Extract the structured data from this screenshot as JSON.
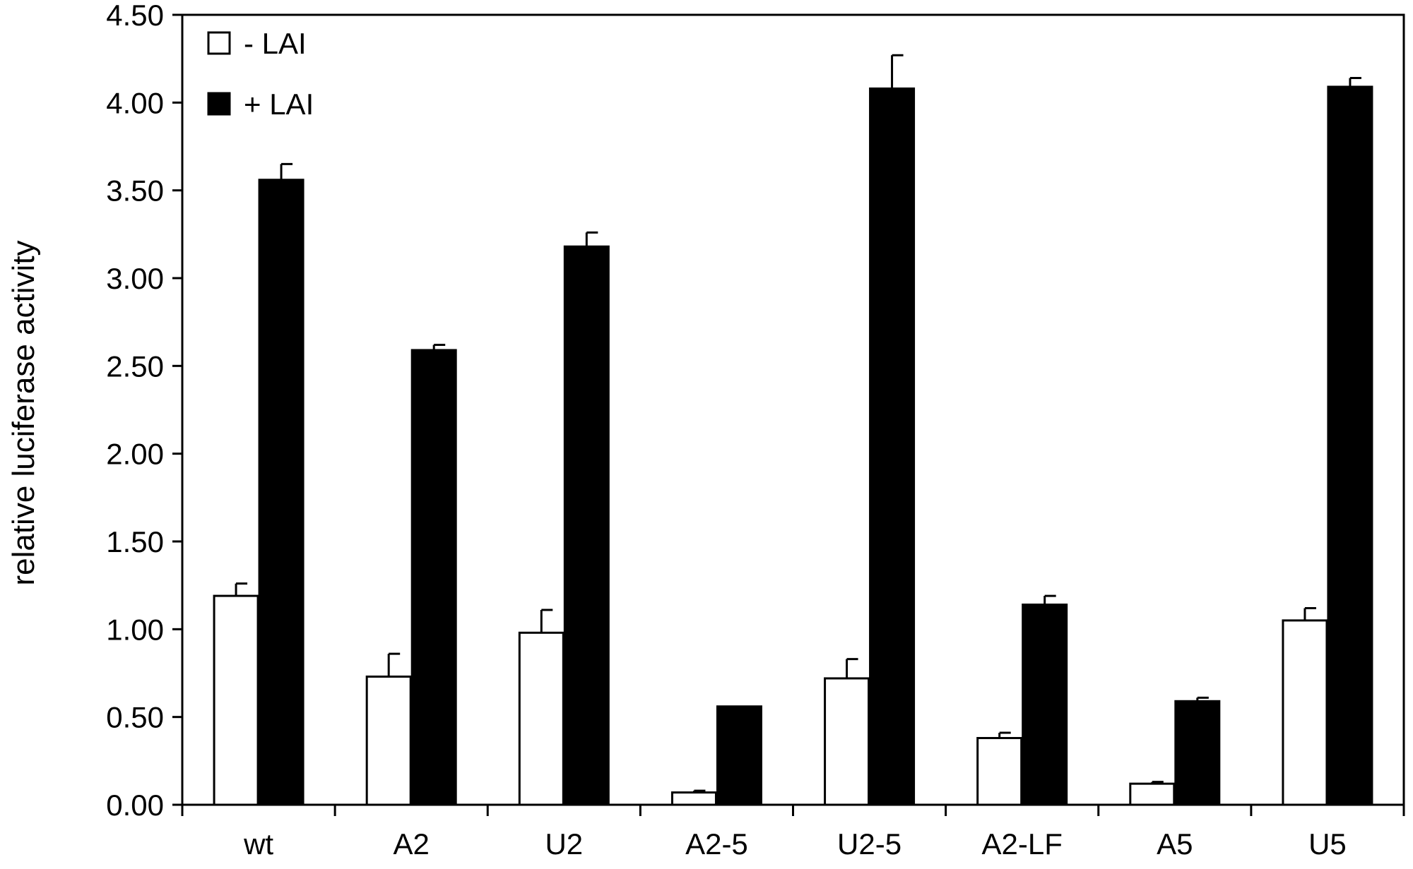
{
  "chart_data": {
    "type": "bar",
    "title": "",
    "xlabel": "",
    "ylabel": "relative luciferase activity",
    "ylim": [
      0,
      4.5
    ],
    "yticks": [
      "0.00",
      "0.50",
      "1.00",
      "1.50",
      "2.00",
      "2.50",
      "3.00",
      "3.50",
      "4.00",
      "4.50"
    ],
    "categories": [
      "wt",
      "A2",
      "U2",
      "A2-5",
      "U2-5",
      "A2-LF",
      "A5",
      "U5"
    ],
    "grid": false,
    "legend_position": "top-left",
    "series": [
      {
        "name": "- LAI",
        "color": "#ffffff",
        "values": [
          1.19,
          0.73,
          0.98,
          0.07,
          0.72,
          0.38,
          0.12,
          1.05
        ],
        "errors": [
          0.07,
          0.13,
          0.13,
          0.01,
          0.11,
          0.03,
          0.01,
          0.07
        ]
      },
      {
        "name": "+ LAI",
        "color": "#000000",
        "values": [
          3.56,
          2.59,
          3.18,
          0.56,
          4.08,
          1.14,
          0.59,
          4.09
        ],
        "errors": [
          0.09,
          0.03,
          0.08,
          0.0,
          0.19,
          0.05,
          0.02,
          0.05
        ]
      }
    ]
  }
}
